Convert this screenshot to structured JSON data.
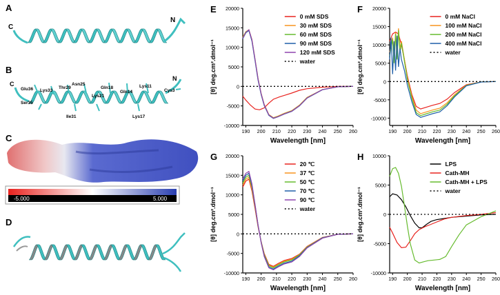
{
  "panels": {
    "A": {
      "letter": "A",
      "c_label": "C",
      "n_label": "N"
    },
    "B": {
      "letter": "B",
      "c_label": "C",
      "n_label": "N",
      "residues": [
        "Glu36",
        "Lys33",
        "Thr29",
        "Asn25",
        "Gln18",
        "Gln14",
        "Lys11",
        "Cys3",
        "Ser35",
        "Ile31",
        "Lys21",
        "Lys17"
      ]
    },
    "C": {
      "letter": "C",
      "scale_min": "-5.000",
      "scale_max": "5.000"
    },
    "D": {
      "letter": "D"
    }
  },
  "colors": {
    "red": "#e8231f",
    "orange": "#f7941d",
    "green": "#66bb2e",
    "blue": "#1f5fa8",
    "purple": "#8e44ad",
    "black": "#000000",
    "cyan": "#3fbfbf",
    "gray": "#888888"
  },
  "chart_data": [
    {
      "id": "E",
      "letter": "E",
      "type": "line",
      "xlabel": "Wavelength [nm]",
      "ylabel": "[θ] deg.cm².dmol⁻¹",
      "xlim": [
        188,
        260
      ],
      "ylim": [
        -10000,
        20000
      ],
      "xticks": [
        190,
        200,
        210,
        220,
        230,
        240,
        250,
        260
      ],
      "yticks": [
        -10000,
        -5000,
        0,
        5000,
        10000,
        15000,
        20000
      ],
      "series": [
        {
          "name": "0 mM SDS",
          "color": "#e8231f",
          "x": [
            188,
            190,
            193,
            196,
            199,
            202,
            205,
            208,
            212,
            216,
            220,
            225,
            230,
            240,
            250,
            260
          ],
          "y": [
            -2500,
            -3500,
            -4800,
            -5800,
            -6000,
            -5500,
            -4300,
            -3300,
            -2700,
            -2200,
            -1700,
            -1000,
            -600,
            -200,
            0,
            0
          ]
        },
        {
          "name": "30 mM SDS",
          "color": "#f7941d",
          "x": [
            188,
            190,
            192,
            194,
            196,
            198,
            200,
            202,
            205,
            208,
            211,
            215,
            220,
            225,
            230,
            240,
            250,
            260
          ],
          "y": [
            12600,
            14000,
            14500,
            12000,
            7000,
            2000,
            -1800,
            -4600,
            -7200,
            -8000,
            -7600,
            -6900,
            -6200,
            -4800,
            -2800,
            -800,
            -100,
            0
          ]
        },
        {
          "name": "60 mM SDS",
          "color": "#66bb2e",
          "x": [
            188,
            190,
            192,
            194,
            196,
            198,
            200,
            202,
            205,
            208,
            211,
            215,
            220,
            225,
            230,
            240,
            250,
            260
          ],
          "y": [
            12400,
            13900,
            14400,
            11800,
            6800,
            1800,
            -2000,
            -4800,
            -7300,
            -8100,
            -7700,
            -7000,
            -6300,
            -4900,
            -2900,
            -800,
            -100,
            0
          ]
        },
        {
          "name": "90 mM SDS",
          "color": "#1f5fa8",
          "x": [
            188,
            190,
            192,
            194,
            196,
            198,
            200,
            202,
            205,
            208,
            211,
            215,
            220,
            225,
            230,
            240,
            250,
            260
          ],
          "y": [
            12200,
            13700,
            14300,
            11600,
            6600,
            1600,
            -2100,
            -4900,
            -7400,
            -8200,
            -7800,
            -7100,
            -6400,
            -5000,
            -3000,
            -850,
            -100,
            0
          ]
        },
        {
          "name": "120 mM SDS",
          "color": "#8e44ad",
          "x": [
            188,
            190,
            192,
            194,
            196,
            198,
            200,
            202,
            205,
            208,
            211,
            215,
            220,
            225,
            230,
            240,
            250,
            260
          ],
          "y": [
            12300,
            13800,
            14500,
            11900,
            6900,
            1900,
            -1900,
            -4700,
            -7300,
            -8150,
            -7750,
            -7050,
            -6350,
            -4950,
            -2950,
            -820,
            -100,
            0
          ]
        },
        {
          "name": "water",
          "color": "#000000",
          "dashed": true,
          "x": [
            188,
            260
          ],
          "y": [
            0,
            0
          ]
        }
      ]
    },
    {
      "id": "F",
      "letter": "F",
      "type": "line",
      "xlabel": "Wavelength [nm]",
      "ylabel": "[θ] deg.cm².dmol⁻¹",
      "xlim": [
        188,
        260
      ],
      "ylim": [
        -12000,
        20000
      ],
      "xticks": [
        190,
        200,
        210,
        220,
        230,
        240,
        250,
        260
      ],
      "yticks": [
        -10000,
        -5000,
        0,
        5000,
        10000,
        15000,
        20000
      ],
      "series": [
        {
          "name": "0  mM NaCl",
          "color": "#e8231f",
          "x": [
            188,
            190,
            192,
            194,
            196,
            198,
            200,
            203,
            206,
            209,
            213,
            217,
            222,
            227,
            232,
            240,
            250,
            260
          ],
          "y": [
            11000,
            13000,
            13500,
            13000,
            10000,
            6000,
            1500,
            -3500,
            -6800,
            -7500,
            -7000,
            -6500,
            -6000,
            -4800,
            -3000,
            -900,
            -100,
            0
          ]
        },
        {
          "name": "100 mM NaCl",
          "color": "#f7941d",
          "x": [
            188,
            190,
            191,
            192,
            193,
            194,
            195,
            196,
            198,
            200,
            203,
            206,
            209,
            213,
            217,
            222,
            227,
            232,
            240,
            250,
            260
          ],
          "y": [
            8000,
            12000,
            6000,
            13500,
            7000,
            14500,
            9000,
            11000,
            6000,
            1000,
            -4000,
            -7800,
            -8800,
            -8300,
            -7800,
            -7300,
            -5800,
            -3600,
            -1000,
            -100,
            0
          ]
        },
        {
          "name": "200 mM NaCl",
          "color": "#66bb2e",
          "x": [
            188,
            190,
            191,
            192,
            193,
            194,
            195,
            196,
            198,
            200,
            203,
            206,
            209,
            213,
            217,
            222,
            227,
            232,
            240,
            250,
            260
          ],
          "y": [
            7000,
            11500,
            5000,
            13000,
            6000,
            14000,
            8000,
            10500,
            5500,
            500,
            -4500,
            -8500,
            -9300,
            -8800,
            -8300,
            -7800,
            -6200,
            -3900,
            -1100,
            -100,
            0
          ]
        },
        {
          "name": "400 mM NaCl",
          "color": "#1f5fa8",
          "x": [
            188,
            189,
            190,
            191,
            192,
            193,
            194,
            195,
            196,
            198,
            200,
            203,
            206,
            209,
            213,
            217,
            222,
            227,
            232,
            240,
            250,
            260
          ],
          "y": [
            6000,
            12000,
            2000,
            11000,
            3000,
            12500,
            4000,
            9000,
            6000,
            3000,
            -1000,
            -5500,
            -9000,
            -9800,
            -9300,
            -8800,
            -8300,
            -6600,
            -4200,
            -1200,
            -150,
            0
          ]
        },
        {
          "name": "water",
          "color": "#000000",
          "dashed": true,
          "x": [
            188,
            260
          ],
          "y": [
            0,
            0
          ]
        }
      ]
    },
    {
      "id": "G",
      "letter": "G",
      "type": "line",
      "xlabel": "Wavelength [nm]",
      "ylabel": "[θ] deg.cm².dmol⁻¹",
      "xlim": [
        188,
        260
      ],
      "ylim": [
        -10000,
        20000
      ],
      "xticks": [
        190,
        200,
        210,
        220,
        230,
        240,
        250,
        260
      ],
      "yticks": [
        -10000,
        -5000,
        0,
        5000,
        10000,
        15000,
        20000
      ],
      "series": [
        {
          "name": "20  ℃",
          "color": "#e8231f",
          "x": [
            188,
            190,
            192,
            194,
            196,
            198,
            200,
            202,
            205,
            208,
            211,
            215,
            220,
            225,
            230,
            240,
            250,
            260
          ],
          "y": [
            12000,
            13500,
            14000,
            11000,
            6500,
            1800,
            -2000,
            -5000,
            -7800,
            -8300,
            -7600,
            -6800,
            -6300,
            -5200,
            -3200,
            -900,
            -100,
            0
          ]
        },
        {
          "name": "37 ℃",
          "color": "#f7941d",
          "x": [
            188,
            190,
            192,
            194,
            196,
            198,
            200,
            202,
            205,
            208,
            211,
            215,
            220,
            225,
            230,
            240,
            250,
            260
          ],
          "y": [
            12500,
            14000,
            14500,
            11500,
            7000,
            2000,
            -2000,
            -5200,
            -8000,
            -8500,
            -7800,
            -7000,
            -6500,
            -5300,
            -3300,
            -950,
            -100,
            0
          ]
        },
        {
          "name": "50 ℃",
          "color": "#66bb2e",
          "x": [
            188,
            190,
            192,
            194,
            196,
            198,
            200,
            202,
            205,
            208,
            211,
            215,
            220,
            225,
            230,
            240,
            250,
            260
          ],
          "y": [
            13000,
            14500,
            15000,
            12000,
            7200,
            2100,
            -2100,
            -5400,
            -8200,
            -8700,
            -8000,
            -7200,
            -6700,
            -5400,
            -3400,
            -1000,
            -100,
            0
          ]
        },
        {
          "name": "70 ℃",
          "color": "#1f5fa8",
          "x": [
            188,
            190,
            192,
            194,
            196,
            198,
            200,
            202,
            205,
            208,
            211,
            215,
            220,
            225,
            230,
            240,
            250,
            260
          ],
          "y": [
            13500,
            15000,
            15500,
            12400,
            7400,
            2200,
            -2200,
            -5600,
            -8500,
            -9000,
            -8300,
            -7500,
            -7000,
            -5600,
            -3500,
            -1000,
            -100,
            0
          ]
        },
        {
          "name": "90 ℃",
          "color": "#8e44ad",
          "x": [
            188,
            190,
            192,
            194,
            196,
            198,
            200,
            202,
            205,
            208,
            211,
            215,
            220,
            225,
            230,
            240,
            250,
            260
          ],
          "y": [
            14000,
            15500,
            16000,
            12800,
            7600,
            2300,
            -2300,
            -5800,
            -8700,
            -9200,
            -8500,
            -7700,
            -7200,
            -5800,
            -3600,
            -1100,
            -100,
            0
          ]
        },
        {
          "name": "water",
          "color": "#000000",
          "dashed": true,
          "x": [
            188,
            260
          ],
          "y": [
            0,
            0
          ]
        }
      ]
    },
    {
      "id": "H",
      "letter": "H",
      "type": "line",
      "xlabel": "Wavelength [nm]",
      "ylabel": "[θ] deg.cm².dmol⁻¹",
      "xlim": [
        188,
        260
      ],
      "ylim": [
        -10000,
        10000
      ],
      "xticks": [
        190,
        200,
        210,
        220,
        230,
        240,
        250,
        260
      ],
      "yticks": [
        -10000,
        -5000,
        0,
        5000,
        10000
      ],
      "series": [
        {
          "name": "LPS",
          "color": "#000000",
          "x": [
            188,
            190,
            193,
            196,
            199,
            202,
            205,
            208,
            210,
            213,
            216,
            220,
            225,
            230,
            240,
            250,
            260
          ],
          "y": [
            3000,
            3500,
            3300,
            2500,
            1300,
            -200,
            -1500,
            -2300,
            -2300,
            -1700,
            -1200,
            -900,
            -700,
            -500,
            -300,
            -100,
            0
          ]
        },
        {
          "name": "Cath-MH",
          "color": "#e8231f",
          "x": [
            188,
            190,
            193,
            196,
            199,
            202,
            205,
            208,
            212,
            216,
            220,
            225,
            230,
            240,
            250,
            260
          ],
          "y": [
            -2200,
            -3200,
            -4800,
            -5700,
            -5600,
            -4500,
            -3300,
            -2600,
            -2100,
            -1700,
            -1300,
            -800,
            -500,
            -200,
            0,
            300
          ]
        },
        {
          "name": "Cath-MH + LPS",
          "color": "#66bb2e",
          "x": [
            188,
            190,
            192,
            194,
            196,
            198,
            200,
            202,
            205,
            208,
            211,
            214,
            218,
            222,
            226,
            230,
            235,
            240,
            250,
            260
          ],
          "y": [
            6500,
            7800,
            8000,
            7000,
            4800,
            1500,
            -2000,
            -5000,
            -7800,
            -8300,
            -8100,
            -7900,
            -7800,
            -7700,
            -7200,
            -5500,
            -3500,
            -1800,
            -400,
            600
          ]
        },
        {
          "name": "water",
          "color": "#000000",
          "dashed": true,
          "x": [
            188,
            260
          ],
          "y": [
            0,
            0
          ]
        }
      ]
    }
  ]
}
